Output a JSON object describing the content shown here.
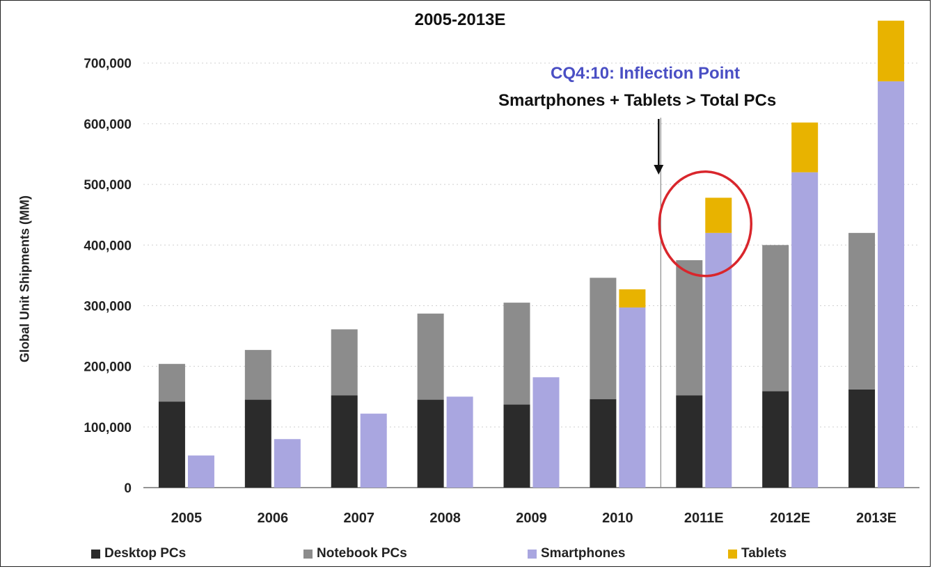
{
  "chart_data": {
    "type": "bar",
    "title": "2005-2013E",
    "ylabel": "Global Unit Shipments (MM)",
    "xlabel": "",
    "categories": [
      "2005",
      "2006",
      "2007",
      "2008",
      "2009",
      "2010",
      "2011E",
      "2012E",
      "2013E"
    ],
    "yticks": [
      "0",
      "100,000",
      "200,000",
      "300,000",
      "400,000",
      "500,000",
      "600,000",
      "700,000"
    ],
    "ylim": [
      0,
      780000
    ],
    "grid": true,
    "stacks": [
      {
        "name": "PCs",
        "series": [
          "Desktop PCs",
          "Notebook PCs"
        ]
      },
      {
        "name": "Smartphones + Tablets",
        "series": [
          "Smartphones",
          "Tablets"
        ]
      }
    ],
    "series": [
      {
        "name": "Desktop PCs",
        "color": "#2b2b2b",
        "values": [
          142000,
          145000,
          152000,
          145000,
          137000,
          146000,
          152000,
          159000,
          162000
        ]
      },
      {
        "name": "Notebook PCs",
        "color": "#8c8c8c",
        "values": [
          62000,
          82000,
          109000,
          142000,
          168000,
          200000,
          223000,
          241000,
          258000
        ]
      },
      {
        "name": "Smartphones",
        "color": "#a9a6e0",
        "values": [
          53000,
          80000,
          122000,
          150000,
          182000,
          297000,
          420000,
          520000,
          670000
        ]
      },
      {
        "name": "Tablets",
        "color": "#e8b300",
        "values": [
          0,
          0,
          0,
          0,
          0,
          30000,
          58000,
          82000,
          100000
        ]
      }
    ],
    "annotations": {
      "inflection_title": "CQ4:10: Inflection Point",
      "inflection_subtitle": "Smartphones + Tablets > Total PCs",
      "highlight_category": "2011E",
      "highlight_color": "#d9262c",
      "marker_between": [
        "2010",
        "2011E"
      ],
      "inflection_title_color": "#4a4fc4"
    },
    "legend_position": "bottom"
  }
}
